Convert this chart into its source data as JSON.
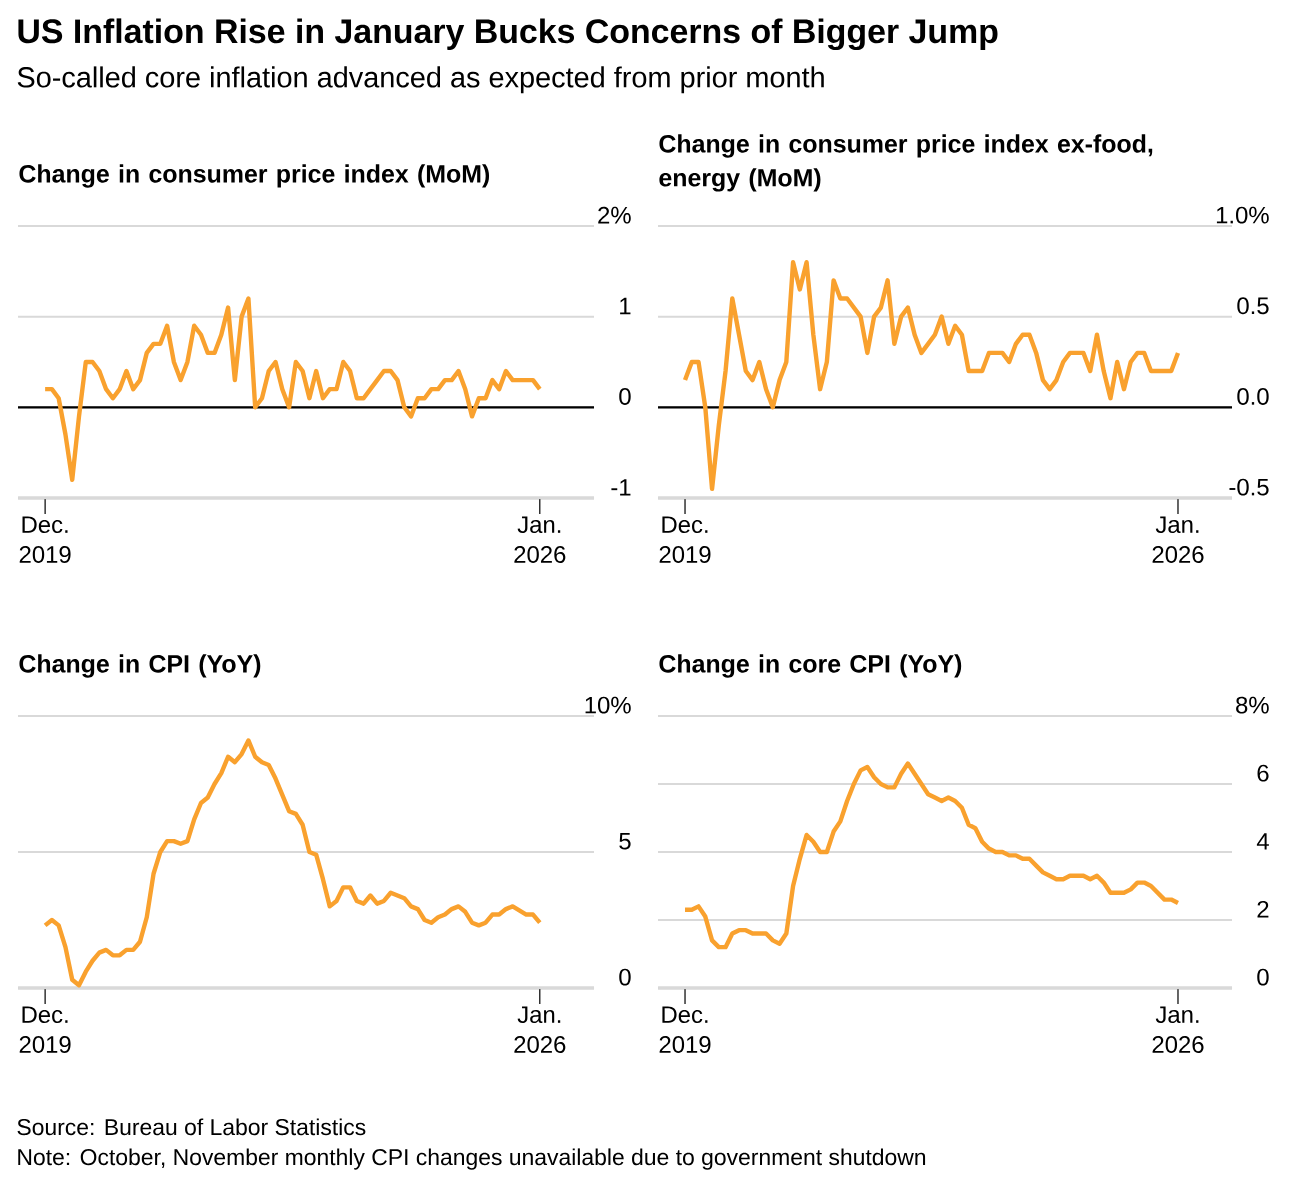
{
  "chart_data": [
    {
      "type": "other",
      "title": "US Inflation Rise in January Bucks Concerns of Bigger Jump",
      "subtitle": "So-called core inflation advanced as expected from prior month",
      "annotations": [
        "Source: Bureau of Labor Statistics",
        "Note: October, November monthly CPI changes unavailable due to government shutdown"
      ]
    },
    {
      "type": "line",
      "title": "Change in consumer price index (MoM)",
      "color": "#f9a12e",
      "grid": "y",
      "x": [
        "2019-12",
        "2020-01",
        "2020-02",
        "2020-03",
        "2020-04",
        "2020-05",
        "2020-06",
        "2020-07",
        "2020-08",
        "2020-09",
        "2020-10",
        "2020-11",
        "2020-12",
        "2021-01",
        "2021-02",
        "2021-03",
        "2021-04",
        "2021-05",
        "2021-06",
        "2021-07",
        "2021-08",
        "2021-09",
        "2021-10",
        "2021-11",
        "2021-12",
        "2022-01",
        "2022-02",
        "2022-03",
        "2022-04",
        "2022-05",
        "2022-06",
        "2022-07",
        "2022-08",
        "2022-09",
        "2022-10",
        "2022-11",
        "2022-12",
        "2023-01",
        "2023-02",
        "2023-03",
        "2023-04",
        "2023-05",
        "2023-06",
        "2023-07",
        "2023-08",
        "2023-09",
        "2023-10",
        "2023-11",
        "2023-12",
        "2024-01",
        "2024-02",
        "2024-03",
        "2024-04",
        "2024-05",
        "2024-06",
        "2024-07",
        "2024-08",
        "2024-09",
        "2024-10",
        "2024-11",
        "2024-12",
        "2025-01",
        "2025-02",
        "2025-03",
        "2025-04",
        "2025-05",
        "2025-06",
        "2025-07",
        "2025-08",
        "2025-09",
        "2025-10",
        "2025-11",
        "2025-12",
        "2026-01"
      ],
      "values": [
        0.2,
        0.2,
        0.1,
        -0.3,
        -0.8,
        -0.1,
        0.5,
        0.5,
        0.4,
        0.2,
        0.1,
        0.2,
        0.4,
        0.2,
        0.3,
        0.6,
        0.7,
        0.7,
        0.9,
        0.5,
        0.3,
        0.5,
        0.9,
        0.8,
        0.6,
        0.6,
        0.8,
        1.1,
        0.3,
        1.0,
        1.2,
        0.0,
        0.1,
        0.4,
        0.5,
        0.2,
        0.0,
        0.5,
        0.4,
        0.1,
        0.4,
        0.1,
        0.2,
        0.2,
        0.5,
        0.4,
        0.1,
        0.1,
        0.2,
        0.3,
        0.4,
        0.4,
        0.3,
        0.0,
        -0.1,
        0.1,
        0.1,
        0.2,
        0.2,
        0.3,
        0.3,
        0.4,
        0.2,
        -0.1,
        0.1,
        0.1,
        0.3,
        0.2,
        0.4,
        0.3,
        null,
        null,
        0.3,
        0.2
      ],
      "xlim": [
        "2019-08",
        "2026-09"
      ],
      "xticks": [
        {
          "value": "2019-12",
          "label": "Dec. 2019"
        },
        {
          "value": "2026-01",
          "label": "Jan. 2026"
        }
      ],
      "ylim": [
        -1,
        2
      ],
      "yticks": [
        -1,
        0,
        1,
        {
          "value": 2,
          "label": "2%"
        }
      ],
      "ref_lines": [
        {
          "axis": "y",
          "value": 0,
          "color": "#000000"
        }
      ]
    },
    {
      "type": "line",
      "title": "Change in consumer price index ex-food, energy (MoM)",
      "color": "#f9a12e",
      "grid": "y",
      "x": [
        "2019-12",
        "2020-01",
        "2020-02",
        "2020-03",
        "2020-04",
        "2020-05",
        "2020-06",
        "2020-07",
        "2020-08",
        "2020-09",
        "2020-10",
        "2020-11",
        "2020-12",
        "2021-01",
        "2021-02",
        "2021-03",
        "2021-04",
        "2021-05",
        "2021-06",
        "2021-07",
        "2021-08",
        "2021-09",
        "2021-10",
        "2021-11",
        "2021-12",
        "2022-01",
        "2022-02",
        "2022-03",
        "2022-04",
        "2022-05",
        "2022-06",
        "2022-07",
        "2022-08",
        "2022-09",
        "2022-10",
        "2022-11",
        "2022-12",
        "2023-01",
        "2023-02",
        "2023-03",
        "2023-04",
        "2023-05",
        "2023-06",
        "2023-07",
        "2023-08",
        "2023-09",
        "2023-10",
        "2023-11",
        "2023-12",
        "2024-01",
        "2024-02",
        "2024-03",
        "2024-04",
        "2024-05",
        "2024-06",
        "2024-07",
        "2024-08",
        "2024-09",
        "2024-10",
        "2024-11",
        "2024-12",
        "2025-01",
        "2025-02",
        "2025-03",
        "2025-04",
        "2025-05",
        "2025-06",
        "2025-07",
        "2025-08",
        "2025-09",
        "2025-10",
        "2025-11",
        "2025-12",
        "2026-01"
      ],
      "values": [
        0.15,
        0.25,
        0.25,
        0.0,
        -0.45,
        -0.1,
        0.2,
        0.6,
        0.4,
        0.2,
        0.15,
        0.25,
        0.1,
        0.0,
        0.15,
        0.25,
        0.8,
        0.65,
        0.8,
        0.4,
        0.1,
        0.25,
        0.7,
        0.6,
        0.6,
        0.55,
        0.5,
        0.3,
        0.5,
        0.55,
        0.7,
        0.35,
        0.5,
        0.55,
        0.4,
        0.3,
        0.35,
        0.4,
        0.5,
        0.35,
        0.45,
        0.4,
        0.2,
        0.2,
        0.2,
        0.3,
        0.3,
        0.3,
        0.25,
        0.35,
        0.4,
        0.4,
        0.3,
        0.15,
        0.1,
        0.15,
        0.25,
        0.3,
        0.3,
        0.3,
        0.2,
        0.4,
        0.2,
        0.05,
        0.25,
        0.1,
        0.25,
        0.3,
        0.3,
        0.2,
        null,
        null,
        0.2,
        0.3
      ],
      "xlim": [
        "2019-08",
        "2026-09"
      ],
      "xticks": [
        {
          "value": "2019-12",
          "label": "Dec. 2019"
        },
        {
          "value": "2026-01",
          "label": "Jan. 2026"
        }
      ],
      "ylim": [
        -0.5,
        1.0
      ],
      "yticks": [
        {
          "value": -0.5,
          "label": "-0.5"
        },
        {
          "value": 0,
          "label": "0.0"
        },
        {
          "value": 0.5,
          "label": "0.5"
        },
        {
          "value": 1.0,
          "label": "1.0%"
        }
      ],
      "ref_lines": [
        {
          "axis": "y",
          "value": 0,
          "color": "#000000"
        }
      ]
    },
    {
      "type": "line",
      "title": "Change in CPI (YoY)",
      "color": "#f9a12e",
      "grid": "y",
      "x": [
        "2019-12",
        "2020-01",
        "2020-02",
        "2020-03",
        "2020-04",
        "2020-05",
        "2020-06",
        "2020-07",
        "2020-08",
        "2020-09",
        "2020-10",
        "2020-11",
        "2020-12",
        "2021-01",
        "2021-02",
        "2021-03",
        "2021-04",
        "2021-05",
        "2021-06",
        "2021-07",
        "2021-08",
        "2021-09",
        "2021-10",
        "2021-11",
        "2021-12",
        "2022-01",
        "2022-02",
        "2022-03",
        "2022-04",
        "2022-05",
        "2022-06",
        "2022-07",
        "2022-08",
        "2022-09",
        "2022-10",
        "2022-11",
        "2022-12",
        "2023-01",
        "2023-02",
        "2023-03",
        "2023-04",
        "2023-05",
        "2023-06",
        "2023-07",
        "2023-08",
        "2023-09",
        "2023-10",
        "2023-11",
        "2023-12",
        "2024-01",
        "2024-02",
        "2024-03",
        "2024-04",
        "2024-05",
        "2024-06",
        "2024-07",
        "2024-08",
        "2024-09",
        "2024-10",
        "2024-11",
        "2024-12",
        "2025-01",
        "2025-02",
        "2025-03",
        "2025-04",
        "2025-05",
        "2025-06",
        "2025-07",
        "2025-08",
        "2025-09",
        "2025-10",
        "2025-11",
        "2025-12",
        "2026-01"
      ],
      "values": [
        2.3,
        2.5,
        2.3,
        1.5,
        0.3,
        0.1,
        0.6,
        1.0,
        1.3,
        1.4,
        1.2,
        1.2,
        1.4,
        1.4,
        1.7,
        2.6,
        4.2,
        5.0,
        5.4,
        5.4,
        5.3,
        5.4,
        6.2,
        6.8,
        7.0,
        7.5,
        7.9,
        8.5,
        8.3,
        8.6,
        9.1,
        8.5,
        8.3,
        8.2,
        7.7,
        7.1,
        6.5,
        6.4,
        6.0,
        5.0,
        4.9,
        4.0,
        3.0,
        3.2,
        3.7,
        3.7,
        3.2,
        3.1,
        3.4,
        3.1,
        3.2,
        3.5,
        3.4,
        3.3,
        3.0,
        2.9,
        2.5,
        2.4,
        2.6,
        2.7,
        2.9,
        3.0,
        2.8,
        2.4,
        2.3,
        2.4,
        2.7,
        2.7,
        2.9,
        3.0,
        null,
        2.7,
        2.7,
        2.4
      ],
      "xlim": [
        "2019-08",
        "2026-09"
      ],
      "xticks": [
        {
          "value": "2019-12",
          "label": "Dec. 2019"
        },
        {
          "value": "2026-01",
          "label": "Jan. 2026"
        }
      ],
      "ylim": [
        0,
        10
      ],
      "yticks": [
        0,
        5,
        {
          "value": 10,
          "label": "10%"
        }
      ]
    },
    {
      "type": "line",
      "title": "Change in core CPI (YoY)",
      "color": "#f9a12e",
      "grid": "y",
      "x": [
        "2019-12",
        "2020-01",
        "2020-02",
        "2020-03",
        "2020-04",
        "2020-05",
        "2020-06",
        "2020-07",
        "2020-08",
        "2020-09",
        "2020-10",
        "2020-11",
        "2020-12",
        "2021-01",
        "2021-02",
        "2021-03",
        "2021-04",
        "2021-05",
        "2021-06",
        "2021-07",
        "2021-08",
        "2021-09",
        "2021-10",
        "2021-11",
        "2021-12",
        "2022-01",
        "2022-02",
        "2022-03",
        "2022-04",
        "2022-05",
        "2022-06",
        "2022-07",
        "2022-08",
        "2022-09",
        "2022-10",
        "2022-11",
        "2022-12",
        "2023-01",
        "2023-02",
        "2023-03",
        "2023-04",
        "2023-05",
        "2023-06",
        "2023-07",
        "2023-08",
        "2023-09",
        "2023-10",
        "2023-11",
        "2023-12",
        "2024-01",
        "2024-02",
        "2024-03",
        "2024-04",
        "2024-05",
        "2024-06",
        "2024-07",
        "2024-08",
        "2024-09",
        "2024-10",
        "2024-11",
        "2024-12",
        "2025-01",
        "2025-02",
        "2025-03",
        "2025-04",
        "2025-05",
        "2025-06",
        "2025-07",
        "2025-08",
        "2025-09",
        "2025-10",
        "2025-11",
        "2025-12",
        "2026-01"
      ],
      "values": [
        2.3,
        2.3,
        2.4,
        2.1,
        1.4,
        1.2,
        1.2,
        1.6,
        1.7,
        1.7,
        1.6,
        1.6,
        1.6,
        1.4,
        1.3,
        1.6,
        3.0,
        3.8,
        4.5,
        4.3,
        4.0,
        4.0,
        4.6,
        4.9,
        5.5,
        6.0,
        6.4,
        6.5,
        6.2,
        6.0,
        5.9,
        5.9,
        6.3,
        6.6,
        6.3,
        6.0,
        5.7,
        5.6,
        5.5,
        5.6,
        5.5,
        5.3,
        4.8,
        4.7,
        4.3,
        4.1,
        4.0,
        4.0,
        3.9,
        3.9,
        3.8,
        3.8,
        3.6,
        3.4,
        3.3,
        3.2,
        3.2,
        3.3,
        3.3,
        3.3,
        3.2,
        3.3,
        3.1,
        2.8,
        2.8,
        2.8,
        2.9,
        3.1,
        3.1,
        3.0,
        null,
        2.6,
        2.6,
        2.5
      ],
      "xlim": [
        "2019-08",
        "2026-09"
      ],
      "xticks": [
        {
          "value": "2019-12",
          "label": "Dec. 2019"
        },
        {
          "value": "2026-01",
          "label": "Jan. 2026"
        }
      ],
      "ylim": [
        0,
        8
      ],
      "yticks": [
        0,
        2,
        4,
        6,
        {
          "value": 8,
          "label": "8%"
        }
      ]
    }
  ]
}
